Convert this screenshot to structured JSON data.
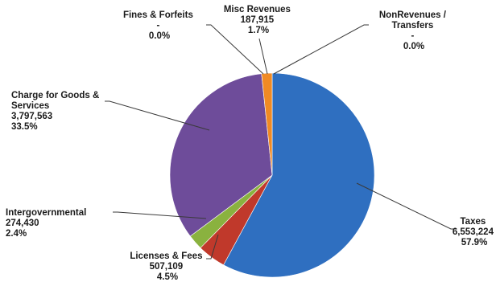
{
  "chart_data": {
    "type": "pie",
    "slices": [
      {
        "name": "Taxes",
        "value": 6553224,
        "value_label": "6,553,224",
        "percent_label": "57.9%",
        "color": "#2f6fc0"
      },
      {
        "name": "Licenses & Fees",
        "value": 507109,
        "value_label": "507,109",
        "percent_label": "4.5%",
        "color": "#c0392b"
      },
      {
        "name": "Intergovernmental",
        "value": 274430,
        "value_label": "274,430",
        "percent_label": "2.4%",
        "color": "#8ab23f"
      },
      {
        "name": "Charge for Goods & Services",
        "value": 3797563,
        "value_label": "3,797,563",
        "percent_label": "33.5%",
        "color": "#6e4c9a"
      },
      {
        "name": "Fines & Forfeits",
        "value": 0,
        "value_label": "-",
        "percent_label": "0.0%",
        "color": "#3aa7c4"
      },
      {
        "name": "Misc Revenues",
        "value": 187915,
        "value_label": "187,915",
        "percent_label": "1.7%",
        "color": "#f08a24"
      },
      {
        "name": "NonRevenues / Transfers",
        "value": 0,
        "value_label": "-",
        "percent_label": "0.0%",
        "color": "#9aa7b8"
      }
    ]
  },
  "labels": {
    "taxes": {
      "l1": "Taxes",
      "l2": "6,553,224",
      "l3": "57.9%"
    },
    "licenses": {
      "l1": "Licenses & Fees",
      "l2": "507,109",
      "l3": "4.5%"
    },
    "intergov": {
      "l1": "Intergovernmental",
      "l2": "274,430",
      "l3": "2.4%"
    },
    "charge": {
      "l1": "Charge for Goods &",
      "l2": "Services",
      "l3": "3,797,563",
      "l4": "33.5%"
    },
    "fines": {
      "l1": "Fines & Forfeits",
      "l2": "-",
      "l3": "0.0%"
    },
    "misc": {
      "l1": "Misc Revenues",
      "l2": "187,915",
      "l3": "1.7%"
    },
    "nonrev": {
      "l1": "NonRevenues /",
      "l2": "Transfers",
      "l3": "-",
      "l4": "0.0%"
    }
  }
}
